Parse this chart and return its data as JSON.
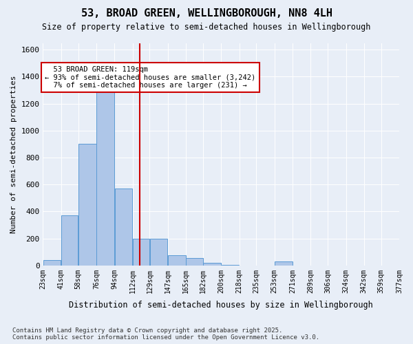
{
  "title": "53, BROAD GREEN, WELLINGBOROUGH, NN8 4LH",
  "subtitle": "Size of property relative to semi-detached houses in Wellingborough",
  "xlabel": "Distribution of semi-detached houses by size in Wellingborough",
  "ylabel": "Number of semi-detached properties",
  "footnote": "Contains HM Land Registry data © Crown copyright and database right 2025.\nContains public sector information licensed under the Open Government Licence v3.0.",
  "bins": [
    23,
    41,
    58,
    76,
    94,
    112,
    129,
    147,
    165,
    182,
    200,
    218,
    235,
    253,
    271,
    289,
    306,
    324,
    342,
    359,
    377
  ],
  "bin_labels": [
    "23sqm",
    "41sqm",
    "58sqm",
    "76sqm",
    "94sqm",
    "112sqm",
    "129sqm",
    "147sqm",
    "165sqm",
    "182sqm",
    "200sqm",
    "218sqm",
    "235sqm",
    "253sqm",
    "271sqm",
    "289sqm",
    "306sqm",
    "324sqm",
    "342sqm",
    "359sqm",
    "377sqm"
  ],
  "counts": [
    40,
    370,
    900,
    1300,
    570,
    200,
    200,
    75,
    55,
    20,
    5,
    0,
    0,
    30,
    0,
    0,
    0,
    0,
    0,
    0
  ],
  "bar_color": "#aec6e8",
  "bar_edge_color": "#5b9bd5",
  "subject_value": 119,
  "subject_label": "53 BROAD GREEN: 119sqm",
  "pct_smaller": 93,
  "count_smaller": 3242,
  "pct_larger": 7,
  "count_larger": 231,
  "vline_color": "#cc0000",
  "ylim": [
    0,
    1650
  ],
  "yticks": [
    0,
    200,
    400,
    600,
    800,
    1000,
    1200,
    1400,
    1600
  ],
  "background_color": "#e8eef7",
  "plot_background": "#e8eef7"
}
